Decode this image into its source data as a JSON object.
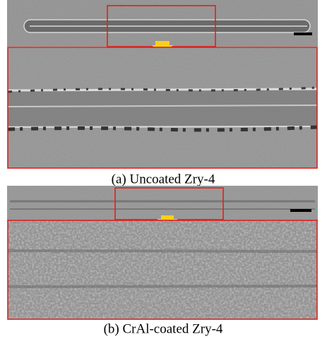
{
  "panels": [
    {
      "caption": "(a) Uncoated Zry-4"
    },
    {
      "caption": "(b) CrAl-coated Zry-4"
    }
  ]
}
